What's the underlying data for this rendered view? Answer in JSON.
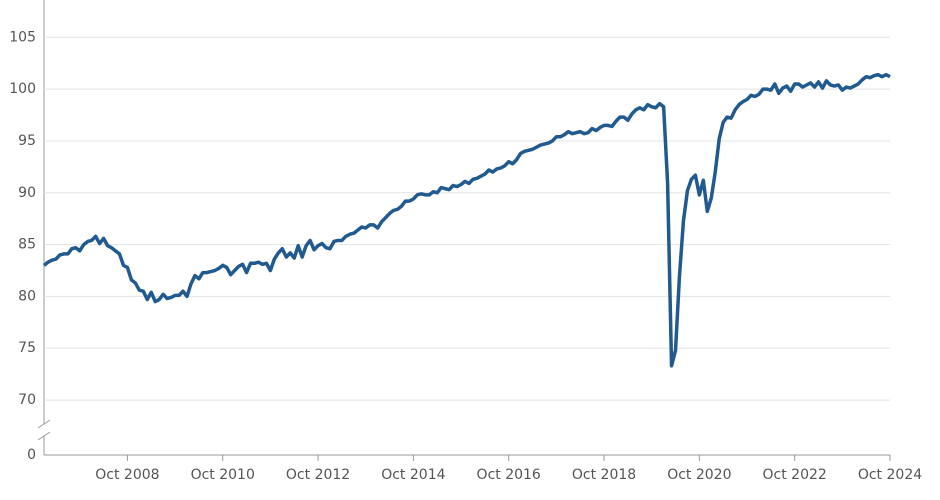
{
  "chart_data": {
    "type": "line",
    "color": "#215a8f",
    "grid": true,
    "y_break": true,
    "ylim": [
      64.7,
      108.6
    ],
    "yticks": [
      0,
      70,
      75,
      80,
      85,
      90,
      95,
      100,
      105
    ],
    "xticks": [
      "Oct 2008",
      "Oct 2010",
      "Oct 2012",
      "Oct 2014",
      "Oct 2016",
      "Oct 2018",
      "Oct 2020",
      "Oct 2022",
      "Oct 2024"
    ],
    "x": [
      "Jan 2007",
      "Feb 2007",
      "Mar 2007",
      "Apr 2007",
      "May 2007",
      "Jun 2007",
      "Jul 2007",
      "Aug 2007",
      "Sep 2007",
      "Oct 2007",
      "Nov 2007",
      "Dec 2007",
      "Jan 2008",
      "Feb 2008",
      "Mar 2008",
      "Apr 2008",
      "May 2008",
      "Jun 2008",
      "Jul 2008",
      "Aug 2008",
      "Sep 2008",
      "Oct 2008",
      "Nov 2008",
      "Dec 2008",
      "Jan 2009",
      "Feb 2009",
      "Mar 2009",
      "Apr 2009",
      "May 2009",
      "Jun 2009",
      "Jul 2009",
      "Aug 2009",
      "Sep 2009",
      "Oct 2009",
      "Nov 2009",
      "Dec 2009",
      "Jan 2010",
      "Feb 2010",
      "Mar 2010",
      "Apr 2010",
      "May 2010",
      "Jun 2010",
      "Jul 2010",
      "Aug 2010",
      "Sep 2010",
      "Oct 2010",
      "Nov 2010",
      "Dec 2010",
      "Jan 2011",
      "Feb 2011",
      "Mar 2011",
      "Apr 2011",
      "May 2011",
      "Jun 2011",
      "Jul 2011",
      "Aug 2011",
      "Sep 2011",
      "Oct 2011",
      "Nov 2011",
      "Dec 2011",
      "Jan 2012",
      "Feb 2012",
      "Mar 2012",
      "Apr 2012",
      "May 2012",
      "Jun 2012",
      "Jul 2012",
      "Aug 2012",
      "Sep 2012",
      "Oct 2012",
      "Nov 2012",
      "Dec 2012",
      "Jan 2013",
      "Feb 2013",
      "Mar 2013",
      "Apr 2013",
      "May 2013",
      "Jun 2013",
      "Jul 2013",
      "Aug 2013",
      "Sep 2013",
      "Oct 2013",
      "Nov 2013",
      "Dec 2013",
      "Jan 2014",
      "Feb 2014",
      "Mar 2014",
      "Apr 2014",
      "May 2014",
      "Jun 2014",
      "Jul 2014",
      "Aug 2014",
      "Sep 2014",
      "Oct 2014",
      "Nov 2014",
      "Dec 2014",
      "Jan 2015",
      "Feb 2015",
      "Mar 2015",
      "Apr 2015",
      "May 2015",
      "Jun 2015",
      "Jul 2015",
      "Aug 2015",
      "Sep 2015",
      "Oct 2015",
      "Nov 2015",
      "Dec 2015",
      "Jan 2016",
      "Feb 2016",
      "Mar 2016",
      "Apr 2016",
      "May 2016",
      "Jun 2016",
      "Jul 2016",
      "Aug 2016",
      "Sep 2016",
      "Oct 2016",
      "Nov 2016",
      "Dec 2016",
      "Jan 2017",
      "Feb 2017",
      "Mar 2017",
      "Apr 2017",
      "May 2017",
      "Jun 2017",
      "Jul 2017",
      "Aug 2017",
      "Sep 2017",
      "Oct 2017",
      "Nov 2017",
      "Dec 2017",
      "Jan 2018",
      "Feb 2018",
      "Mar 2018",
      "Apr 2018",
      "May 2018",
      "Jun 2018",
      "Jul 2018",
      "Aug 2018",
      "Sep 2018",
      "Oct 2018",
      "Nov 2018",
      "Dec 2018",
      "Jan 2019",
      "Feb 2019",
      "Mar 2019",
      "Apr 2019",
      "May 2019",
      "Jun 2019",
      "Jul 2019",
      "Aug 2019",
      "Sep 2019",
      "Oct 2019",
      "Nov 2019",
      "Dec 2019",
      "Jan 2020",
      "Feb 2020",
      "Mar 2020",
      "Apr 2020",
      "May 2020",
      "Jun 2020",
      "Jul 2020",
      "Aug 2020",
      "Sep 2020",
      "Oct 2020",
      "Nov 2020",
      "Dec 2020",
      "Jan 2021",
      "Feb 2021",
      "Mar 2021",
      "Apr 2021",
      "May 2021",
      "Jun 2021",
      "Jul 2021",
      "Aug 2021",
      "Sep 2021",
      "Oct 2021",
      "Nov 2021",
      "Dec 2021",
      "Jan 2022",
      "Feb 2022",
      "Mar 2022",
      "Apr 2022",
      "May 2022",
      "Jun 2022",
      "Jul 2022",
      "Aug 2022",
      "Sep 2022",
      "Oct 2022",
      "Nov 2022",
      "Dec 2022",
      "Jan 2023",
      "Feb 2023",
      "Mar 2023",
      "Apr 2023",
      "May 2023",
      "Jun 2023",
      "Jul 2023",
      "Aug 2023",
      "Sep 2023",
      "Oct 2023",
      "Nov 2023",
      "Dec 2023",
      "Jan 2024",
      "Feb 2024",
      "Mar 2024",
      "Apr 2024",
      "May 2024",
      "Jun 2024",
      "Jul 2024",
      "Aug 2024",
      "Sep 2024",
      "Oct 2024"
    ],
    "values": [
      83.0,
      83.3,
      83.5,
      83.6,
      84.0,
      84.1,
      84.1,
      84.6,
      84.7,
      84.4,
      85.0,
      85.3,
      85.4,
      85.8,
      85.1,
      85.6,
      84.9,
      84.7,
      84.4,
      84.1,
      83.0,
      82.8,
      81.6,
      81.3,
      80.6,
      80.5,
      79.7,
      80.4,
      79.5,
      79.7,
      80.2,
      79.8,
      79.9,
      80.1,
      80.1,
      80.5,
      80.0,
      81.2,
      82.0,
      81.7,
      82.3,
      82.3,
      82.4,
      82.5,
      82.7,
      83.0,
      82.8,
      82.1,
      82.5,
      82.9,
      83.1,
      82.3,
      83.2,
      83.2,
      83.3,
      83.1,
      83.2,
      82.5,
      83.6,
      84.2,
      84.6,
      83.8,
      84.2,
      83.7,
      84.9,
      83.8,
      84.9,
      85.4,
      84.5,
      84.9,
      85.1,
      84.7,
      84.6,
      85.3,
      85.4,
      85.4,
      85.8,
      86.0,
      86.1,
      86.4,
      86.7,
      86.6,
      86.9,
      86.9,
      86.6,
      87.2,
      87.6,
      88.0,
      88.3,
      88.4,
      88.7,
      89.2,
      89.2,
      89.4,
      89.8,
      89.9,
      89.8,
      89.8,
      90.1,
      90.0,
      90.5,
      90.4,
      90.3,
      90.7,
      90.6,
      90.8,
      91.1,
      90.9,
      91.3,
      91.4,
      91.6,
      91.8,
      92.2,
      92.0,
      92.3,
      92.4,
      92.6,
      93.0,
      92.8,
      93.2,
      93.8,
      94.0,
      94.1,
      94.2,
      94.4,
      94.6,
      94.7,
      94.8,
      95.0,
      95.4,
      95.4,
      95.6,
      95.9,
      95.7,
      95.8,
      95.9,
      95.7,
      95.8,
      96.2,
      96.0,
      96.3,
      96.5,
      96.5,
      96.4,
      96.9,
      97.3,
      97.3,
      97.0,
      97.6,
      98.0,
      98.2,
      98.0,
      98.5,
      98.3,
      98.2,
      98.6,
      98.3,
      91.0,
      73.3,
      74.8,
      82.0,
      87.3,
      90.2,
      91.3,
      91.7,
      89.8,
      91.2,
      88.2,
      89.5,
      92.0,
      95.2,
      96.8,
      97.3,
      97.2,
      98.0,
      98.5,
      98.8,
      99.0,
      99.4,
      99.3,
      99.5,
      100.0,
      100.0,
      99.9,
      100.5,
      99.6,
      100.1,
      100.3,
      99.8,
      100.5,
      100.5,
      100.2,
      100.4,
      100.6,
      100.2,
      100.7,
      100.1,
      100.8,
      100.4,
      100.3,
      100.4,
      99.9,
      100.2,
      100.1,
      100.3,
      100.5,
      100.9,
      101.2,
      101.1,
      101.3,
      101.4,
      101.2,
      101.4,
      101.2
    ]
  }
}
